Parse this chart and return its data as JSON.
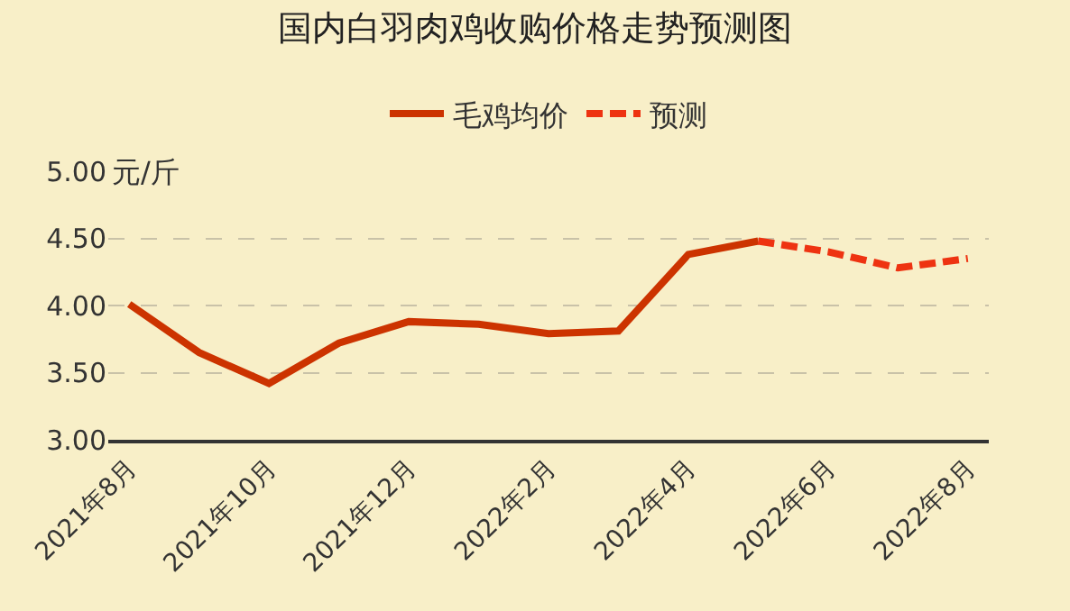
{
  "chart_data": {
    "type": "line",
    "title": "国内白羽肉鸡收购价格走势预测图",
    "categories": [
      "2021年8月",
      null,
      "2021年10月",
      null,
      "2021年12月",
      null,
      "2022年2月",
      null,
      "2022年4月",
      null,
      "2022年6月",
      null,
      "2022年8月"
    ],
    "series": [
      {
        "name": "毛鸡均价",
        "color": "#cc3300",
        "line_style": "solid",
        "values": [
          4.01,
          3.65,
          3.42,
          3.72,
          3.88,
          3.86,
          3.79,
          3.81,
          4.38,
          4.48,
          null,
          null,
          null
        ]
      },
      {
        "name": "预测",
        "color": "#ee3311",
        "line_style": "dashed",
        "values": [
          null,
          null,
          null,
          null,
          null,
          null,
          null,
          null,
          null,
          4.48,
          4.4,
          4.28,
          4.35
        ]
      }
    ],
    "ylim": [
      3.0,
      5.0
    ],
    "yticks": [
      {
        "value": 3.0,
        "label": "3.00"
      },
      {
        "value": 3.5,
        "label": "3.50"
      },
      {
        "value": 4.0,
        "label": "4.00"
      },
      {
        "value": 4.5,
        "label": "4.50"
      },
      {
        "value": 5.0,
        "label": "5.00"
      }
    ],
    "annotations": [
      "元/斤"
    ],
    "grid": "y",
    "legend": "top",
    "marker": "none"
  }
}
